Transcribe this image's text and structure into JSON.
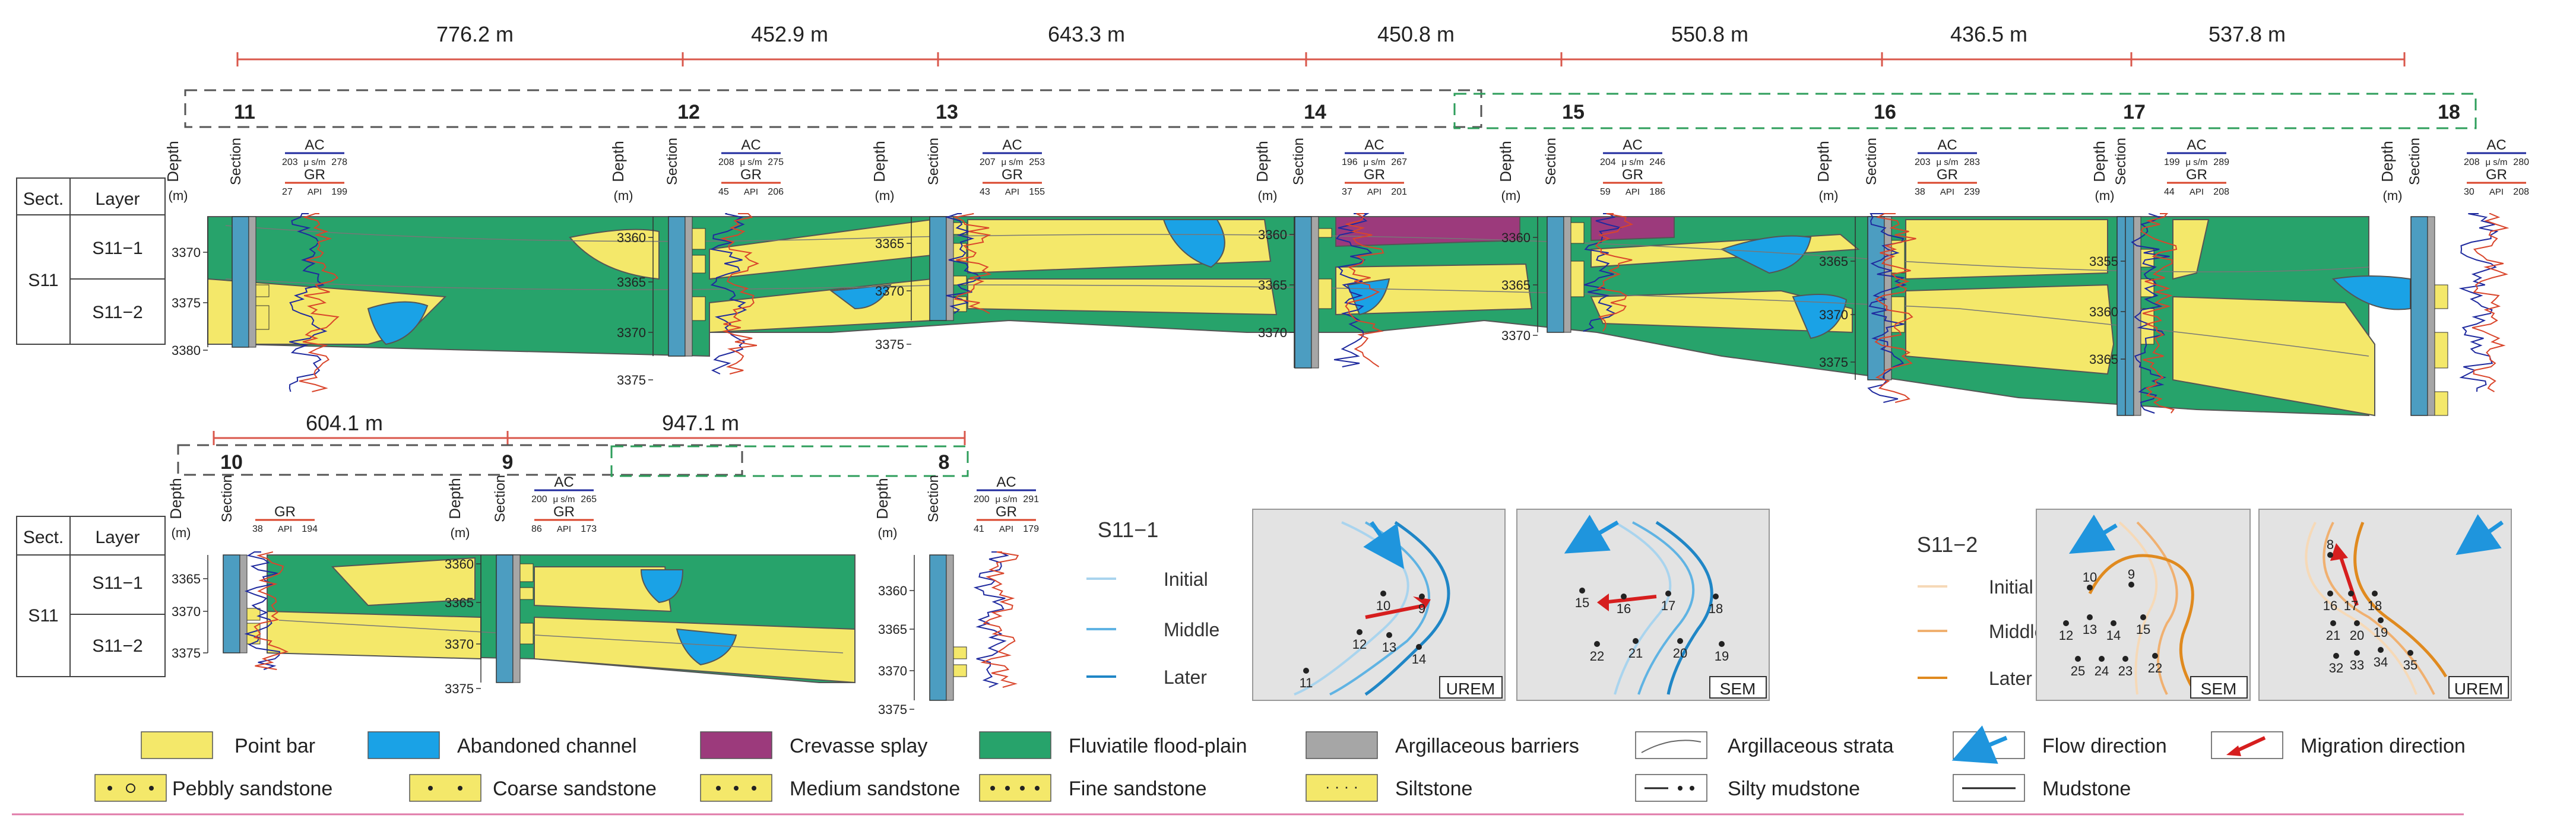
{
  "top_panel": {
    "distances": [
      "776.2  m",
      "452.9  m",
      "643.3  m",
      "450.8  m",
      "550.8  m",
      "436.5  m",
      "537.8  m"
    ],
    "wells": [
      "11",
      "12",
      "13",
      "14",
      "15",
      "16",
      "17",
      "18"
    ],
    "header": {
      "sect": "Sect.",
      "layer": "Layer",
      "depth": "Depth",
      "depth_unit": "(m)",
      "section": "Section"
    },
    "layers": {
      "sect": "S11",
      "upper": "S11−1",
      "lower": "S11−2"
    },
    "logs": {
      "ac": "AC",
      "gr": "GR",
      "ac_unit": "μ s/m",
      "gr_unit": "API"
    },
    "log_scales": [
      {
        "ac": [
          "203",
          "278"
        ],
        "gr": [
          "27",
          "199"
        ]
      },
      {
        "ac": [
          "208",
          "275"
        ],
        "gr": [
          "45",
          "206"
        ]
      },
      {
        "ac": [
          "207",
          "253"
        ],
        "gr": [
          "43",
          "155"
        ]
      },
      {
        "ac": [
          "196",
          "267"
        ],
        "gr": [
          "37",
          "201"
        ]
      },
      {
        "ac": [
          "204",
          "246"
        ],
        "gr": [
          "59",
          "186"
        ]
      },
      {
        "ac": [
          "203",
          "283"
        ],
        "gr": [
          "38",
          "239"
        ]
      },
      {
        "ac": [
          "199",
          "289"
        ],
        "gr": [
          "44",
          "208"
        ]
      },
      {
        "ac": [
          "208",
          "280"
        ],
        "gr": [
          "30",
          "208"
        ]
      }
    ],
    "depth_ticks": [
      [
        "3370",
        "3375",
        "3380"
      ],
      [
        "3360",
        "3365",
        "3370",
        "3375"
      ],
      [
        "3365",
        "3370",
        "3375"
      ],
      [
        "3360",
        "3365",
        "3370"
      ],
      [
        "3360",
        "3365",
        "3370"
      ],
      [
        "3365",
        "3370",
        "3375"
      ],
      [
        "3355",
        "3360",
        "3365"
      ]
    ]
  },
  "bottom_panel": {
    "distances": [
      "604.1  m",
      "947.1  m"
    ],
    "wells": [
      "10",
      "9",
      "8"
    ],
    "log_scales": [
      {
        "ac": [],
        "gr": [
          "38",
          "194"
        ]
      },
      {
        "ac": [
          "200",
          "265"
        ],
        "gr": [
          "86",
          "173"
        ]
      },
      {
        "ac": [
          "200",
          "291"
        ],
        "gr": [
          "41",
          "179"
        ]
      }
    ],
    "depth_ticks": [
      [
        "3365",
        "3370",
        "3375"
      ],
      [
        "3360",
        "3365",
        "3370",
        "3375"
      ],
      [
        "3360",
        "3365",
        "3370",
        "3375"
      ]
    ]
  },
  "insets": {
    "s11_1": {
      "title": "S11−1",
      "initial": "Initial",
      "middle": "Middle",
      "later": "Later"
    },
    "s11_2": {
      "title": "S11−2",
      "initial": "Initial",
      "middle": "Middle",
      "later": "Later"
    },
    "panel1": {
      "tag": "UREM",
      "wells": [
        "10",
        "9",
        "12",
        "13",
        "14",
        "11"
      ]
    },
    "panel2": {
      "tag": "SEM",
      "wells": [
        "15",
        "16",
        "17",
        "18",
        "22",
        "21",
        "20",
        "19"
      ]
    },
    "panel3": {
      "tag": "SEM",
      "wells": [
        "10",
        "9",
        "12",
        "13",
        "14",
        "15",
        "25",
        "24",
        "23",
        "22"
      ]
    },
    "panel4": {
      "tag": "UREM",
      "wells": [
        "8",
        "16",
        "17",
        "18",
        "21",
        "20",
        "19",
        "32",
        "33",
        "34",
        "35"
      ]
    }
  },
  "legend": {
    "row1": [
      "Point bar",
      "Abandoned channel",
      "Crevasse splay",
      "Fluviatile flood-plain",
      "Argillaceous barriers",
      "Argillaceous strata",
      "Flow direction",
      "Migration direction"
    ],
    "row2": [
      "Pebbly sandstone",
      "Coarse sandstone",
      "Medium sandstone",
      "Fine sandstone",
      "Siltstone",
      "Silty mudstone",
      "Mudstone"
    ]
  },
  "colors": {
    "point_bar": "#f4e86a",
    "abandoned_channel": "#1aa2e6",
    "crevasse_splay": "#9c3a7c",
    "flood_plain": "#27a36b",
    "barrier": "#a6a6a6",
    "section_col": "#4c9dc1",
    "ac_curve": "#1f2a9e",
    "gr_curve": "#d9452b",
    "distance_line": "#d9574b",
    "green_dash": "#2e9e5b",
    "flow": "#1f95dd",
    "migration": "#d61e1e",
    "s11_1_initial": "#a9d4ee",
    "s11_1_middle": "#5fb3e3",
    "s11_1_later": "#1f86c6",
    "s11_2_initial": "#f6d9b7",
    "s11_2_middle": "#f0b070",
    "s11_2_later": "#e08a1f"
  }
}
